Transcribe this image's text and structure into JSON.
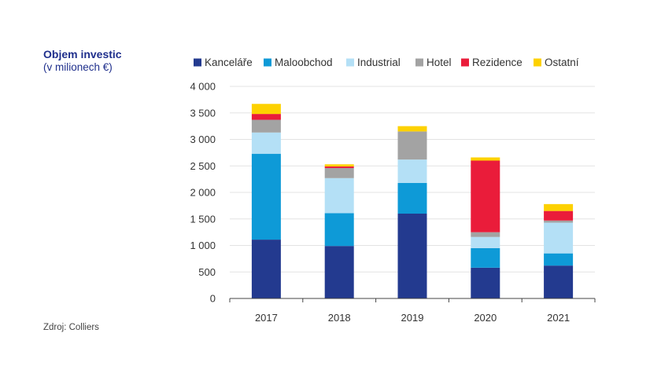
{
  "header": {
    "title": "Objem investic",
    "subtitle": "(v milionech €)"
  },
  "footer": {
    "source": "Zdroj: Colliers"
  },
  "chart_data": {
    "type": "bar",
    "stacked": true,
    "title": "Objem investic",
    "subtitle": "(v milionech €)",
    "xlabel": "",
    "ylabel": "",
    "ylim": [
      0,
      4000
    ],
    "y_ticks": [
      0,
      500,
      1000,
      1500,
      2000,
      2500,
      3000,
      3500,
      4000
    ],
    "y_tick_labels": [
      "0",
      "500",
      "1 000",
      "1 500",
      "2 000",
      "2 500",
      "3 000",
      "3 500",
      "4 000"
    ],
    "grid": true,
    "legend_position": "top",
    "categories": [
      "2017",
      "2018",
      "2019",
      "2020",
      "2021"
    ],
    "series": [
      {
        "name": "Kanceláře",
        "color": "#233a8f",
        "values": [
          1110,
          990,
          1600,
          580,
          620
        ]
      },
      {
        "name": "Maloobchod",
        "color": "#0e9ad7",
        "values": [
          1620,
          620,
          580,
          370,
          230
        ]
      },
      {
        "name": "Industrial",
        "color": "#b4e0f6",
        "values": [
          400,
          660,
          440,
          210,
          580
        ]
      },
      {
        "name": "Hotel",
        "color": "#a3a3a3",
        "values": [
          240,
          190,
          530,
          90,
          40
        ]
      },
      {
        "name": "Rezidence",
        "color": "#ea1c3a",
        "values": [
          110,
          30,
          0,
          1350,
          180
        ]
      },
      {
        "name": "Ostatní",
        "color": "#fdd100",
        "values": [
          190,
          40,
          100,
          60,
          130
        ]
      }
    ]
  }
}
